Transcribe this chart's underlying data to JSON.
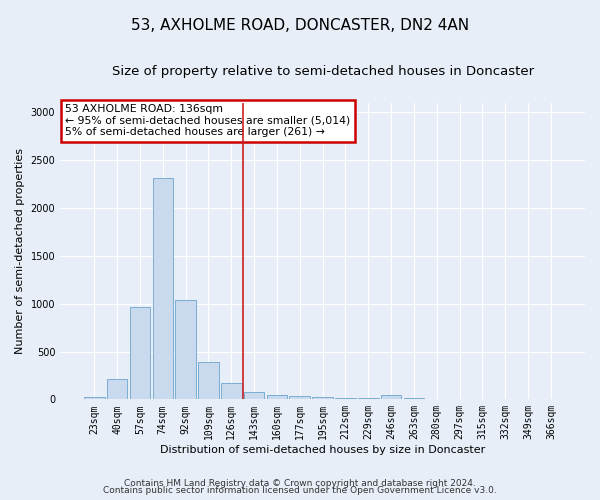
{
  "title": "53, AXHOLME ROAD, DONCASTER, DN2 4AN",
  "subtitle": "Size of property relative to semi-detached houses in Doncaster",
  "xlabel": "Distribution of semi-detached houses by size in Doncaster",
  "ylabel": "Number of semi-detached properties",
  "footer_line1": "Contains HM Land Registry data © Crown copyright and database right 2024.",
  "footer_line2": "Contains public sector information licensed under the Open Government Licence v3.0.",
  "annotation_title": "53 AXHOLME ROAD: 136sqm",
  "annotation_line1": "← 95% of semi-detached houses are smaller (5,014)",
  "annotation_line2": "5% of semi-detached houses are larger (261) →",
  "bar_categories": [
    "23sqm",
    "40sqm",
    "57sqm",
    "74sqm",
    "92sqm",
    "109sqm",
    "126sqm",
    "143sqm",
    "160sqm",
    "177sqm",
    "195sqm",
    "212sqm",
    "229sqm",
    "246sqm",
    "263sqm",
    "280sqm",
    "297sqm",
    "315sqm",
    "332sqm",
    "349sqm",
    "366sqm"
  ],
  "bar_values": [
    25,
    210,
    970,
    2310,
    1040,
    390,
    170,
    80,
    50,
    40,
    25,
    10,
    10,
    45,
    10,
    5,
    5,
    5,
    5,
    5,
    5
  ],
  "bar_color": "#c9d9ee",
  "bar_edge_color": "#7aadd4",
  "red_line_index": 6.5,
  "ylim_max": 3100,
  "annotation_box_color": "#ffffff",
  "annotation_box_edge": "#cc0000",
  "title_fontsize": 11,
  "subtitle_fontsize": 9.5,
  "axis_label_fontsize": 8,
  "tick_fontsize": 7,
  "background_color": "#e8eef8",
  "plot_bg_color": "#e8eef8",
  "grid_color": "#ffffff",
  "footer_fontsize": 6.5
}
